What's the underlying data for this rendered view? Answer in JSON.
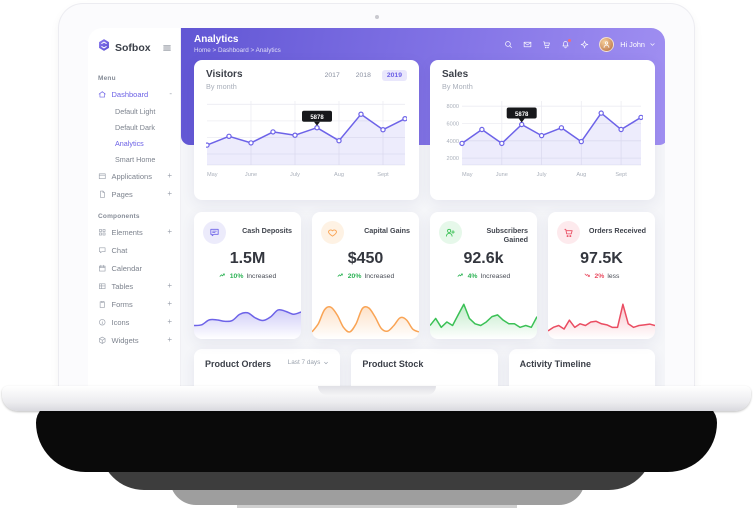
{
  "brand": {
    "name": "Sofbox"
  },
  "header": {
    "title": "Analytics",
    "breadcrumb": "Home > Dashboard > Analytics",
    "icons": [
      {
        "name": "search-icon"
      },
      {
        "name": "mail-icon"
      },
      {
        "name": "cart-icon"
      },
      {
        "name": "bell-icon",
        "badge": true
      },
      {
        "name": "sparkle-icon"
      }
    ],
    "user": {
      "greeting": "Hi John"
    }
  },
  "sidebar": {
    "menu_label": "Menu",
    "components_label": "Components",
    "menu_items": [
      {
        "label": "Dashboard",
        "icon": "home",
        "suffix": "-",
        "active": true,
        "children": [
          {
            "label": "Default Light",
            "active": false
          },
          {
            "label": "Default Dark",
            "active": false
          },
          {
            "label": "Analytics",
            "active": true
          },
          {
            "label": "Smart Home",
            "active": false
          }
        ]
      },
      {
        "label": "Applications",
        "icon": "apps",
        "suffix": "+"
      },
      {
        "label": "Pages",
        "icon": "pages",
        "suffix": "+"
      }
    ],
    "component_items": [
      {
        "label": "Elements",
        "icon": "elements",
        "suffix": "+"
      },
      {
        "label": "Chat",
        "icon": "chat",
        "suffix": ""
      },
      {
        "label": "Calendar",
        "icon": "calendar",
        "suffix": ""
      },
      {
        "label": "Tables",
        "icon": "table",
        "suffix": "+"
      },
      {
        "label": "Forms",
        "icon": "forms",
        "suffix": "+"
      },
      {
        "label": "Icons",
        "icon": "icons",
        "suffix": "+"
      },
      {
        "label": "Widgets",
        "icon": "widgets",
        "suffix": "+"
      }
    ]
  },
  "chart_data": [
    {
      "type": "line",
      "title": "Visitors",
      "subtitle": "By month",
      "tabs": [
        "2017",
        "2018",
        "2019"
      ],
      "active_tab": "2019",
      "x_labels": [
        "May",
        "June",
        "July",
        "Aug",
        "Sept"
      ],
      "x_label_idx": [
        0,
        2,
        4,
        6,
        8
      ],
      "values": [
        4300,
        5100,
        4500,
        5500,
        5200,
        5878,
        4700,
        7100,
        5700,
        6700
      ],
      "ylim": [
        2500,
        8300
      ],
      "grid_y": [
        3500,
        5000,
        6500,
        8000
      ],
      "grid_x": [
        2,
        4,
        6,
        8
      ],
      "tooltip": {
        "index": 5,
        "text": "5878"
      },
      "color": "#6d63e8",
      "legend": "none",
      "grid": "on"
    },
    {
      "type": "line",
      "title": "Sales",
      "subtitle": "By Month",
      "x_labels": [
        "May",
        "June",
        "July",
        "Aug",
        "Sept"
      ],
      "x_label_idx": [
        0,
        2,
        4,
        6,
        8
      ],
      "values": [
        3700,
        5300,
        3700,
        5878,
        4600,
        5500,
        3900,
        7200,
        5300,
        6700
      ],
      "ylim": [
        1200,
        8600
      ],
      "y_ticks": [
        2000,
        4000,
        6000,
        8000
      ],
      "grid_y": [
        2000,
        4000,
        6000,
        8000
      ],
      "grid_x": [
        2,
        4,
        6,
        8
      ],
      "tooltip": {
        "index": 3,
        "text": "5878"
      },
      "color": "#6d63e8",
      "legend": "none",
      "grid": "on"
    }
  ],
  "stats": [
    {
      "icon": "chat-bubble",
      "label": "Cash Deposits",
      "value": "1.5M",
      "trend": "up",
      "trend_value": "10%",
      "trend_text": "Increased",
      "color": "#6d63e8",
      "icon_bg": "#ecebfb",
      "trend_color": "#2fb457",
      "smooth": true,
      "spark": [
        3,
        3.2,
        4.6,
        4.6,
        4.2,
        4.4,
        6.2,
        6.6,
        5.2,
        4.4,
        5.4,
        7.4,
        7,
        6.2,
        6.8
      ]
    },
    {
      "icon": "heart",
      "label": "Capital Gains",
      "value": "$450",
      "trend": "up",
      "trend_value": "20%",
      "trend_text": "Increased",
      "color": "#f9a455",
      "icon_bg": "#fef2e4",
      "trend_color": "#2fb457",
      "smooth": true,
      "spark": [
        1.2,
        3.5,
        7.5,
        8.2,
        6,
        2.5,
        1.2,
        3.5,
        7.8,
        8,
        5.5,
        2.2,
        1.4,
        3,
        5.2,
        4.6,
        2,
        1.2
      ]
    },
    {
      "icon": "user-plus",
      "label": "Subscribers Gained",
      "value": "92.6k",
      "trend": "up",
      "trend_value": "4%",
      "trend_text": "Increased",
      "color": "#3bc156",
      "icon_bg": "#e6f8ea",
      "trend_color": "#2fb457",
      "smooth": false,
      "spark": [
        3,
        5,
        2.5,
        4,
        3,
        6,
        9,
        5,
        3.5,
        3,
        4,
        5.5,
        6,
        4.5,
        3.5,
        3.5,
        2.5,
        3,
        2.5,
        5.5
      ]
    },
    {
      "icon": "cart",
      "label": "Orders Received",
      "value": "97.5K",
      "trend": "down",
      "trend_value": "2%",
      "trend_text": "less",
      "color": "#ea4d62",
      "icon_bg": "#fdeaed",
      "trend_color": "#ea4d62",
      "smooth": false,
      "spark": [
        1.5,
        2.5,
        3,
        2,
        4.5,
        2.5,
        3.5,
        3,
        4,
        4.2,
        3.5,
        3.2,
        2.5,
        2.5,
        9,
        3.5,
        2.5,
        3,
        3.2,
        3.4,
        3
      ]
    }
  ],
  "bottom_cards": [
    {
      "title": "Product Orders",
      "filter": "Last 7 days"
    },
    {
      "title": "Product Stock",
      "filter": ""
    },
    {
      "title": "Activity Timeline",
      "filter": ""
    }
  ]
}
